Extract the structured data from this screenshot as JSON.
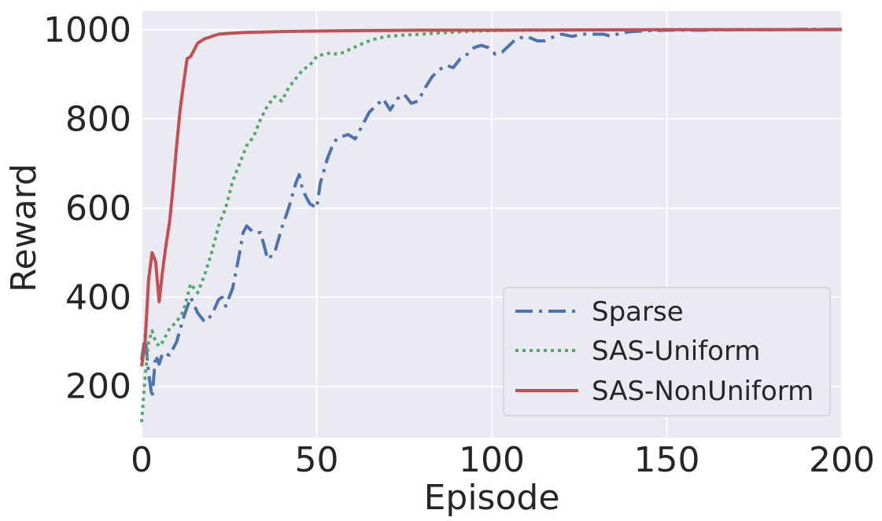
{
  "chart_data": {
    "type": "line",
    "title": "",
    "xlabel": "Episode",
    "ylabel": "Reward",
    "xlim": [
      0,
      200
    ],
    "ylim": [
      85,
      1042
    ],
    "xticks": [
      0,
      50,
      100,
      150,
      200
    ],
    "yticks": [
      200,
      400,
      600,
      800,
      1000
    ],
    "grid": true,
    "background": "#eaeaf2",
    "legend_position": "bottom-right",
    "series": [
      {
        "name": "Sparse",
        "color": "#4c72b0",
        "style": "dashdot",
        "points": [
          [
            0,
            260
          ],
          [
            1,
            315
          ],
          [
            2,
            230
          ],
          [
            3,
            175
          ],
          [
            4,
            270
          ],
          [
            5,
            250
          ],
          [
            6,
            275
          ],
          [
            8,
            270
          ],
          [
            10,
            300
          ],
          [
            12,
            355
          ],
          [
            14,
            400
          ],
          [
            16,
            365
          ],
          [
            18,
            345
          ],
          [
            20,
            360
          ],
          [
            22,
            395
          ],
          [
            23,
            400
          ],
          [
            24,
            380
          ],
          [
            26,
            420
          ],
          [
            28,
            500
          ],
          [
            29,
            545
          ],
          [
            30,
            560
          ],
          [
            32,
            545
          ],
          [
            34,
            545
          ],
          [
            36,
            485
          ],
          [
            38,
            500
          ],
          [
            40,
            555
          ],
          [
            42,
            600
          ],
          [
            44,
            655
          ],
          [
            45,
            675
          ],
          [
            46,
            640
          ],
          [
            48,
            610
          ],
          [
            50,
            600
          ],
          [
            51,
            655
          ],
          [
            53,
            710
          ],
          [
            55,
            750
          ],
          [
            57,
            760
          ],
          [
            59,
            765
          ],
          [
            61,
            755
          ],
          [
            63,
            785
          ],
          [
            65,
            815
          ],
          [
            67,
            830
          ],
          [
            69,
            845
          ],
          [
            71,
            820
          ],
          [
            73,
            845
          ],
          [
            75,
            855
          ],
          [
            77,
            835
          ],
          [
            79,
            840
          ],
          [
            81,
            870
          ],
          [
            83,
            895
          ],
          [
            85,
            910
          ],
          [
            87,
            920
          ],
          [
            89,
            915
          ],
          [
            91,
            935
          ],
          [
            93,
            945
          ],
          [
            95,
            960
          ],
          [
            97,
            965
          ],
          [
            99,
            960
          ],
          [
            101,
            945
          ],
          [
            103,
            950
          ],
          [
            105,
            965
          ],
          [
            107,
            980
          ],
          [
            110,
            985
          ],
          [
            113,
            975
          ],
          [
            115,
            975
          ],
          [
            118,
            985
          ],
          [
            120,
            990
          ],
          [
            123,
            985
          ],
          [
            126,
            990
          ],
          [
            129,
            990
          ],
          [
            132,
            990
          ],
          [
            134,
            985
          ],
          [
            137,
            993
          ],
          [
            140,
            996
          ],
          [
            145,
            998
          ],
          [
            150,
            999
          ],
          [
            160,
            999
          ],
          [
            170,
            1000
          ],
          [
            180,
            1000
          ],
          [
            190,
            1001
          ],
          [
            200,
            1001
          ]
        ]
      },
      {
        "name": "SAS-Uniform",
        "color": "#55a868",
        "style": "dotted",
        "points": [
          [
            0,
            120
          ],
          [
            1,
            220
          ],
          [
            2,
            300
          ],
          [
            3,
            325
          ],
          [
            4,
            300
          ],
          [
            5,
            290
          ],
          [
            6,
            300
          ],
          [
            8,
            330
          ],
          [
            10,
            345
          ],
          [
            12,
            370
          ],
          [
            14,
            430
          ],
          [
            16,
            410
          ],
          [
            18,
            450
          ],
          [
            20,
            500
          ],
          [
            22,
            560
          ],
          [
            24,
            600
          ],
          [
            26,
            660
          ],
          [
            28,
            700
          ],
          [
            30,
            740
          ],
          [
            32,
            760
          ],
          [
            34,
            800
          ],
          [
            36,
            830
          ],
          [
            38,
            850
          ],
          [
            40,
            840
          ],
          [
            42,
            870
          ],
          [
            44,
            890
          ],
          [
            46,
            910
          ],
          [
            48,
            920
          ],
          [
            50,
            940
          ],
          [
            52,
            945
          ],
          [
            54,
            948
          ],
          [
            56,
            945
          ],
          [
            58,
            950
          ],
          [
            60,
            958
          ],
          [
            62,
            965
          ],
          [
            64,
            972
          ],
          [
            66,
            978
          ],
          [
            70,
            985
          ],
          [
            75,
            988
          ],
          [
            80,
            990
          ],
          [
            85,
            993
          ],
          [
            90,
            995
          ],
          [
            95,
            997
          ],
          [
            100,
            998
          ],
          [
            110,
            999
          ],
          [
            120,
            999
          ],
          [
            150,
            1000
          ],
          [
            200,
            1001
          ]
        ]
      },
      {
        "name": "SAS-NonUniform",
        "color": "#c44e52",
        "style": "solid",
        "points": [
          [
            0,
            245
          ],
          [
            1,
            300
          ],
          [
            2,
            440
          ],
          [
            3,
            500
          ],
          [
            4,
            480
          ],
          [
            5,
            390
          ],
          [
            6,
            460
          ],
          [
            7,
            520
          ],
          [
            8,
            570
          ],
          [
            9,
            650
          ],
          [
            10,
            740
          ],
          [
            11,
            820
          ],
          [
            12,
            880
          ],
          [
            13,
            935
          ],
          [
            14,
            940
          ],
          [
            15,
            955
          ],
          [
            16,
            970
          ],
          [
            17,
            975
          ],
          [
            18,
            980
          ],
          [
            19,
            982
          ],
          [
            20,
            985
          ],
          [
            22,
            990
          ],
          [
            25,
            992
          ],
          [
            30,
            994
          ],
          [
            40,
            996
          ],
          [
            50,
            997
          ],
          [
            60,
            998
          ],
          [
            80,
            999
          ],
          [
            100,
            999
          ],
          [
            150,
            1000
          ],
          [
            200,
            1000
          ]
        ]
      }
    ]
  }
}
